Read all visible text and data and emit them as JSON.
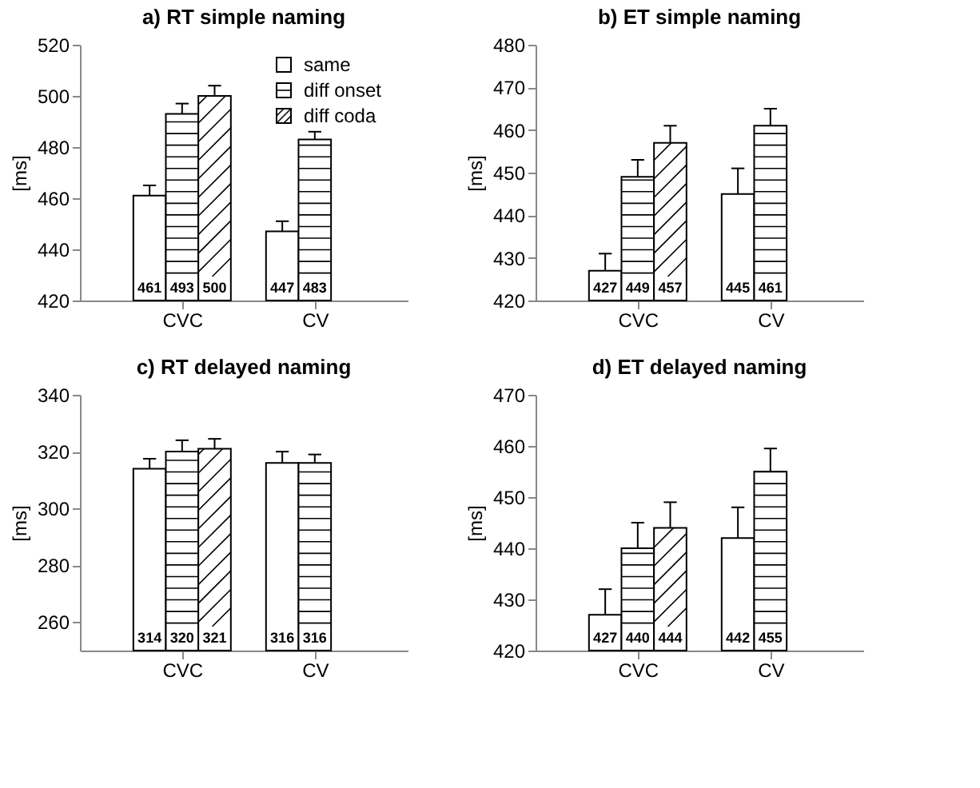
{
  "chart_data": [
    {
      "type": "bar",
      "title": "a) RT simple naming",
      "ylabel": "[ms]",
      "categories": [
        "CVC",
        "CV"
      ],
      "ylim": [
        420,
        520
      ],
      "yticks": [
        420,
        440,
        460,
        480,
        500,
        520
      ],
      "data_labels": true,
      "legend": "top right",
      "series": [
        {
          "name": "same",
          "color": "#ffffff",
          "values": [
            461,
            447
          ],
          "errors": [
            4,
            4
          ]
        },
        {
          "name": "diff onset",
          "color": "#ffffff",
          "values": [
            493,
            483
          ],
          "errors": [
            4,
            3
          ]
        },
        {
          "name": "diff coda",
          "color": "#ffffff",
          "values": [
            500,
            null
          ],
          "errors": [
            4,
            null
          ]
        }
      ]
    },
    {
      "type": "bar",
      "title": "b) ET simple naming",
      "ylabel": "[ms]",
      "categories": [
        "CVC",
        "CV"
      ],
      "ylim": [
        420,
        480
      ],
      "yticks": [
        420,
        430,
        440,
        450,
        460,
        470,
        480
      ],
      "data_labels": true,
      "series": [
        {
          "color": "#ffffff",
          "values": [
            427,
            445
          ],
          "errors": [
            4,
            6
          ]
        },
        {
          "color": "#ffffff",
          "values": [
            449,
            461
          ],
          "errors": [
            4,
            4
          ]
        },
        {
          "color": "#ffffff",
          "values": [
            457,
            null
          ],
          "errors": [
            4,
            null
          ]
        }
      ]
    },
    {
      "type": "bar",
      "title": "c) RT delayed naming",
      "ylabel": "[ms]",
      "categories": [
        "CVC",
        "CV"
      ],
      "ylim": [
        250,
        340
      ],
      "yticks": [
        260,
        280,
        300,
        320,
        340
      ],
      "data_labels": true,
      "series": [
        {
          "color": "#ffffff",
          "values": [
            314,
            316
          ],
          "errors": [
            3.5,
            4
          ]
        },
        {
          "color": "#ffffff",
          "values": [
            320,
            316
          ],
          "errors": [
            4,
            3
          ]
        },
        {
          "color": "#ffffff",
          "values": [
            321,
            null
          ],
          "errors": [
            3.5,
            null
          ]
        }
      ]
    },
    {
      "type": "bar",
      "title": "d) ET delayed naming",
      "ylabel": "[ms]",
      "categories": [
        "CVC",
        "CV"
      ],
      "ylim": [
        420,
        470
      ],
      "yticks": [
        420,
        430,
        440,
        450,
        460,
        470
      ],
      "data_labels": true,
      "series": [
        {
          "color": "#ffffff",
          "values": [
            427,
            442
          ],
          "errors": [
            5,
            6
          ]
        },
        {
          "color": "#ffffff",
          "values": [
            440,
            455
          ],
          "errors": [
            5,
            4.5
          ]
        },
        {
          "color": "#ffffff",
          "values": [
            444,
            null
          ],
          "errors": [
            5,
            null
          ]
        }
      ]
    }
  ]
}
